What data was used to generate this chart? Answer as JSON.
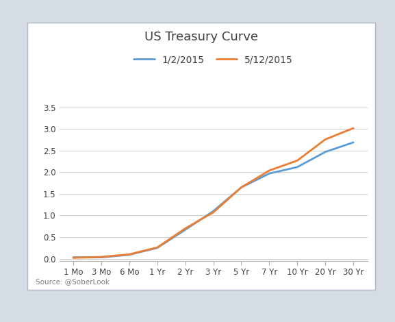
{
  "title": "US Treasury Curve",
  "x_labels": [
    "1 Mo",
    "3 Mo",
    "6 Mo",
    "1 Yr",
    "2 Yr",
    "3 Yr",
    "5 Yr",
    "7 Yr",
    "10 Yr",
    "20 Yr",
    "30 Yr"
  ],
  "series": [
    {
      "label": "1/2/2015",
      "color": "#5b9bd5",
      "values": [
        0.03,
        0.03,
        0.09,
        0.25,
        0.67,
        1.1,
        1.65,
        1.97,
        2.12,
        2.47,
        2.69
      ]
    },
    {
      "label": "5/12/2015",
      "color": "#ed7d31",
      "values": [
        0.02,
        0.04,
        0.1,
        0.26,
        0.7,
        1.07,
        1.65,
        2.04,
        2.27,
        2.76,
        3.02
      ]
    }
  ],
  "ylim": [
    -0.05,
    3.75
  ],
  "yticks": [
    0.0,
    0.5,
    1.0,
    1.5,
    2.0,
    2.5,
    3.0,
    3.5
  ],
  "background_color": "#d6dce4",
  "plot_bg_color": "#ffffff",
  "source_text": "Source: @SoberLook",
  "title_fontsize": 13,
  "legend_fontsize": 10,
  "tick_fontsize": 8.5,
  "source_fontsize": 7.5,
  "line_width": 2.0
}
